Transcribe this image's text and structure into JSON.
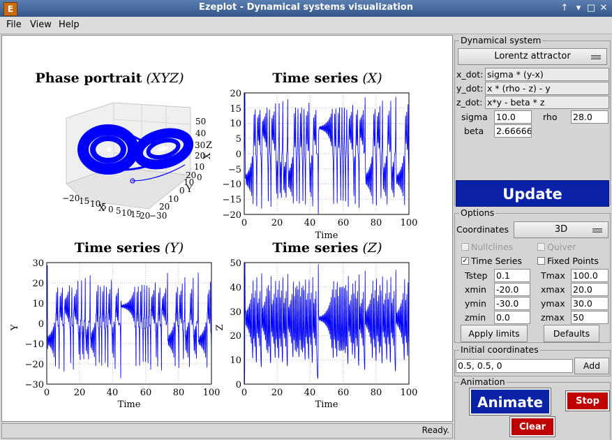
{
  "window": {
    "title": "Ezeplot - Dynamical systems visualization"
  },
  "menu": {
    "file": "File",
    "view": "View",
    "help": "Help"
  },
  "plots": {
    "phase": {
      "title_bold": "Phase portrait",
      "title_italic": "(XYZ)",
      "x_label": "X",
      "y_label": "Y",
      "z_label": "Z",
      "x_ticks": [
        "−20",
        "15",
        "10",
        "5",
        "0",
        "5",
        "10",
        "15",
        "20"
      ],
      "y_ticks": [
        "−30",
        "20",
        "10",
        "0",
        "10",
        "20",
        "30"
      ],
      "z_ticks": [
        "0",
        "10",
        "20",
        "30",
        "40",
        "50"
      ]
    },
    "tx": {
      "title_bold": "Time series",
      "title_italic": "(X)",
      "xlabel": "Time",
      "ylabel": "X",
      "yticks": [
        "20",
        "15",
        "10",
        "5",
        "0",
        "−5",
        "−10",
        "−15",
        "−20"
      ],
      "xticks": [
        "0",
        "20",
        "40",
        "60",
        "80",
        "100"
      ]
    },
    "ty": {
      "title_bold": "Time series",
      "title_italic": "(Y)",
      "xlabel": "Time",
      "ylabel": "Y",
      "yticks": [
        "30",
        "20",
        "10",
        "0",
        "−10",
        "−20",
        "−30"
      ],
      "xticks": [
        "0",
        "20",
        "40",
        "60",
        "80",
        "100"
      ]
    },
    "tz": {
      "title_bold": "Time series",
      "title_italic": "(Z)",
      "xlabel": "Time",
      "ylabel": "Z",
      "yticks": [
        "50",
        "40",
        "30",
        "20",
        "10",
        "0"
      ],
      "xticks": [
        "0",
        "20",
        "40",
        "60",
        "80",
        "100"
      ]
    }
  },
  "status": "Ready.",
  "panel": {
    "dyn_title": "Dynamical system",
    "system": "Lorentz attractor",
    "xdot_label": "x_dot:",
    "xdot": "sigma * (y-x)",
    "ydot_label": "y_dot:",
    "ydot": "x * (rho - z) - y",
    "zdot_label": "z_dot:",
    "zdot": "x*y - beta * z",
    "sigma_label": "sigma",
    "sigma": "10.0",
    "rho_label": "rho",
    "rho": "28.0",
    "beta_label": "beta",
    "beta": "2.66666",
    "update": "Update",
    "options_title": "Options",
    "coords_label": "Coordinates",
    "coords": "3D",
    "nullclines": "Nullclines",
    "quiver": "Quiver",
    "timeseries": "Time Series",
    "fixedpoints": "Fixed Points",
    "tstep_label": "Tstep",
    "tstep": "0.1",
    "tmax_label": "Tmax",
    "tmax": "100.0",
    "xmin_label": "xmin",
    "xmin": "-20.0",
    "xmax_label": "xmax",
    "xmax": "20.0",
    "ymin_label": "ymin",
    "ymin": "-30.0",
    "ymax_label": "ymax",
    "ymax": "30.0",
    "zmin_label": "zmin",
    "zmin": "0.0",
    "zmax_label": "zmax",
    "zmax": "50",
    "apply": "Apply limits",
    "defaults": "Defaults",
    "init_title": "Initial coordinates",
    "init": "0.5, 0.5, 0",
    "add": "Add",
    "anim_title": "Animation",
    "animate": "Animate",
    "stop": "Stop",
    "clear": "Clear"
  },
  "colors": {
    "series": "#0000ff",
    "update_bg": "#0a22a8",
    "stop_bg": "#c00000"
  }
}
